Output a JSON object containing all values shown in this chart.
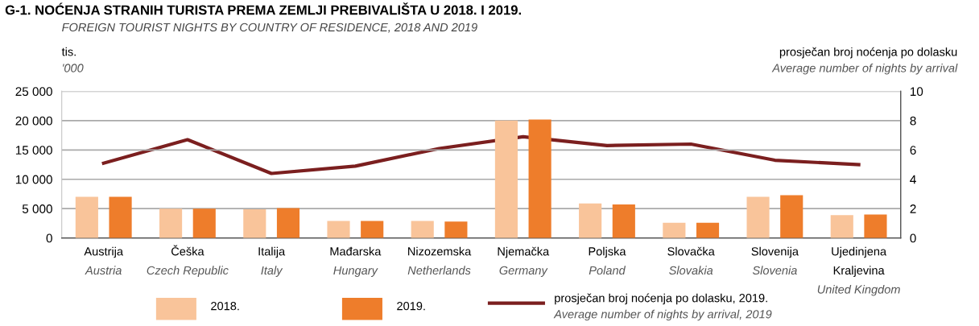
{
  "chart_data": {
    "type": "bar",
    "title": "G-1. NOĆENJA STRANIH TURISTA PREMA ZEMLJI PREBIVALIŠTA U 2018. I 2019.",
    "subtitle": "FOREIGN TOURIST NIGHTS BY COUNTRY OF RESIDENCE, 2018 AND 2019",
    "ylabel": "tis.\n'000",
    "y2label": "prosječan broj noćenja po dolasku\nAverage number of nights by arrival",
    "categories": [
      "Austrija\nAustria",
      "Češka\nCzech Republic",
      "Italija\nItaly",
      "Mađarska\nHungary",
      "Nizozemska\nNetherlands",
      "Njemačka\nGermany",
      "Poljska\nPoland",
      "Slovačka\nSlovakia",
      "Slovenija\nSlovenia",
      "Ujedinjena\nKraljevina\nUnited Kingdom"
    ],
    "series": [
      {
        "name": "2018.",
        "color": "#f9c49a",
        "values": [
          7000,
          5000,
          4900,
          2900,
          2900,
          20000,
          5900,
          2600,
          7000,
          3900
        ]
      },
      {
        "name": "2019.",
        "color": "#ee7d2b",
        "values": [
          7000,
          5000,
          5100,
          2900,
          2800,
          20200,
          5700,
          2600,
          7300,
          4000
        ]
      },
      {
        "name": "prosječan broj noćenja po dolasku, 2019.\nAverage number of nights by arrival, 2019",
        "type": "line",
        "axis": "y2",
        "color": "#7b1f1f",
        "values": [
          5.1,
          6.7,
          4.4,
          4.9,
          6.1,
          6.9,
          6.3,
          6.4,
          5.3,
          5.0
        ]
      }
    ],
    "ylim": [
      0,
      25000
    ],
    "yticks": [
      {
        "value": 0,
        "label": "0"
      },
      {
        "value": 5000,
        "label": "5 000"
      },
      {
        "value": 10000,
        "label": "10 000"
      },
      {
        "value": 15000,
        "label": "15 000"
      },
      {
        "value": 20000,
        "label": "20 000"
      },
      {
        "value": 25000,
        "label": "25 000"
      }
    ],
    "y2lim": [
      0,
      10
    ],
    "y2ticks": [
      0,
      2,
      4,
      6,
      8,
      10
    ],
    "grid": "y",
    "legend": "bottom"
  }
}
